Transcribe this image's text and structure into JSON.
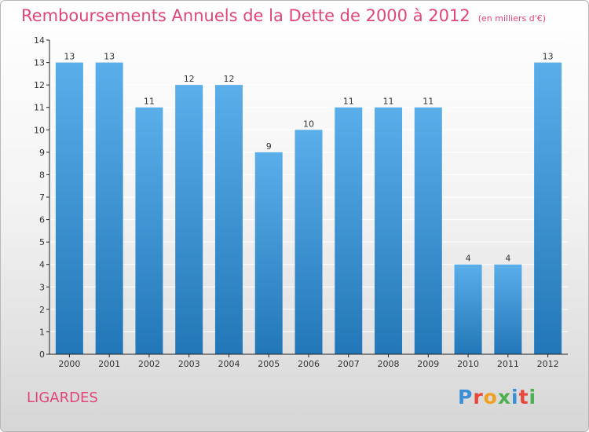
{
  "title": "Remboursements Annuels de la Dette de 2000 à 2012",
  "unit": "(en milliers d'€)",
  "commune": "LIGARDES",
  "logo": {
    "text": "Proxiti",
    "letters": [
      {
        "ch": "P",
        "color": "#3a8fd6"
      },
      {
        "ch": "r",
        "color": "#e8483c"
      },
      {
        "ch": "o",
        "color": "#f0a020"
      },
      {
        "ch": "x",
        "color": "#4caf50"
      },
      {
        "ch": "i",
        "color": "#3a8fd6"
      },
      {
        "ch": "t",
        "color": "#e8483c"
      },
      {
        "ch": "i",
        "color": "#4caf50"
      }
    ]
  },
  "colors": {
    "title": "#e0457b",
    "bar_top": "#5aaeea",
    "bar_bottom": "#2277b8",
    "grid": "#ffffff",
    "axis": "#222222"
  },
  "chart_data": {
    "type": "bar",
    "categories": [
      "2000",
      "2001",
      "2002",
      "2003",
      "2004",
      "2005",
      "2006",
      "2007",
      "2008",
      "2009",
      "2010",
      "2011",
      "2012"
    ],
    "values": [
      13,
      13,
      11,
      12,
      12,
      9,
      10,
      11,
      11,
      11,
      4,
      4,
      13
    ],
    "ylim": [
      0,
      14
    ],
    "yticks": [
      0,
      1,
      2,
      3,
      4,
      5,
      6,
      7,
      8,
      9,
      10,
      11,
      12,
      13,
      14
    ],
    "grid": true,
    "title": "Remboursements Annuels de la Dette de 2000 à 2012",
    "xlabel": "",
    "ylabel": ""
  }
}
